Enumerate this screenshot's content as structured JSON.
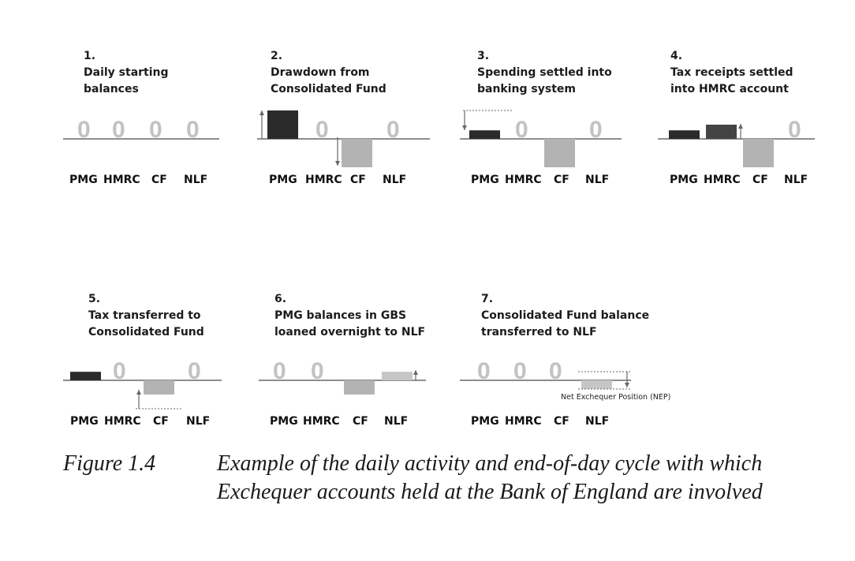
{
  "figure": {
    "number": "Figure 1.4",
    "caption_line1": "Example of the daily activity and end-of-day cycle with which",
    "caption_line2": "Exchequer accounts held at the Bank of England are involved"
  },
  "accounts": [
    "PMG",
    "HMRC",
    "CF",
    "NLF"
  ],
  "zero": "0",
  "colors": {
    "pmg": "#2b2b2b",
    "hmrc": "#444444",
    "cf": "#b3b3b3",
    "nlf": "#c6c6c6",
    "zero_text": "#c2c2c2",
    "baseline": "#4a4a4a"
  },
  "panels": [
    {
      "number": "1.",
      "title_lines": [
        "Daily starting",
        "balances"
      ],
      "balances": {
        "PMG": 0,
        "HMRC": 0,
        "CF": 0,
        "NLF": 0
      }
    },
    {
      "number": "2.",
      "title_lines": [
        "Drawdown from",
        "Consolidated Fund"
      ],
      "balances": {
        "PMG": 1.0,
        "HMRC": 0,
        "CF": -1.0,
        "NLF": 0
      }
    },
    {
      "number": "3.",
      "title_lines": [
        "Spending settled into",
        "banking system"
      ],
      "balances": {
        "PMG": 0.3,
        "HMRC": 0,
        "CF": -1.0,
        "NLF": 0
      }
    },
    {
      "number": "4.",
      "title_lines": [
        "Tax receipts settled",
        "into HMRC account"
      ],
      "balances": {
        "PMG": 0.3,
        "HMRC": 0.5,
        "CF": -1.0,
        "NLF": 0
      }
    },
    {
      "number": "5.",
      "title_lines": [
        "Tax transferred to",
        "Consolidated Fund"
      ],
      "balances": {
        "PMG": 0.3,
        "HMRC": 0,
        "CF": -0.5,
        "NLF": 0
      }
    },
    {
      "number": "6.",
      "title_lines": [
        "PMG balances in GBS",
        "loaned overnight to NLF"
      ],
      "balances": {
        "PMG": 0,
        "HMRC": 0,
        "CF": -0.5,
        "NLF": 0.3
      }
    },
    {
      "number": "7.",
      "title_lines": [
        "Consolidated Fund balance",
        "transferred to NLF"
      ],
      "balances": {
        "PMG": 0,
        "HMRC": 0,
        "CF": 0,
        "NLF": -0.3
      },
      "annotation": "Net Exchequer Position (NEP)"
    }
  ]
}
